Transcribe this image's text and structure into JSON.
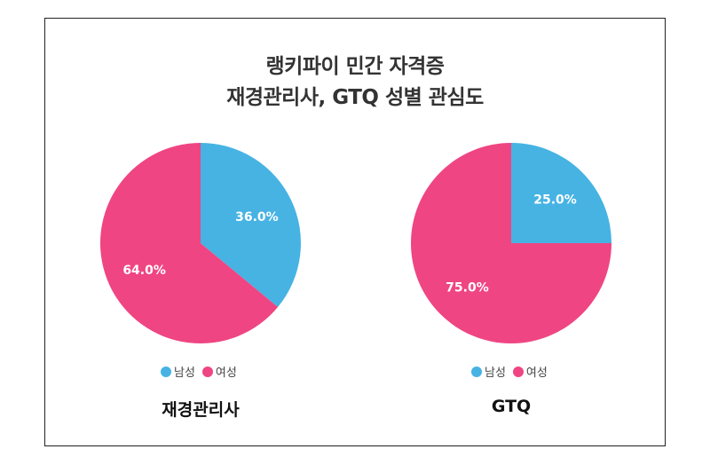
{
  "title_line1": "랭키파이 민간 자격증",
  "title_line2": "재경관리사, GTQ 성별 관심도",
  "colors": {
    "male": "#46b3e3",
    "female": "#ef4582"
  },
  "chart_data": [
    {
      "type": "pie",
      "title": "재경관리사",
      "labels": [
        "남성",
        "여성"
      ],
      "values": [
        36.0,
        64.0
      ],
      "value_labels": [
        "36.0%",
        "64.0%"
      ],
      "legend": [
        "남성",
        "여성"
      ]
    },
    {
      "type": "pie",
      "title": "GTQ",
      "labels": [
        "남성",
        "여성"
      ],
      "values": [
        25.0,
        75.0
      ],
      "value_labels": [
        "25.0%",
        "75.0%"
      ],
      "legend": [
        "남성",
        "여성"
      ]
    }
  ]
}
